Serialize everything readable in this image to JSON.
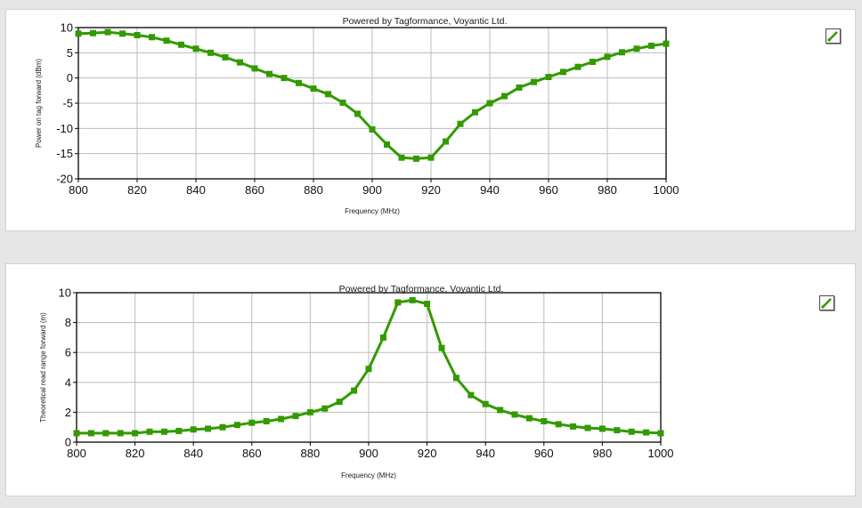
{
  "chart_data": [
    {
      "type": "line",
      "title": "Powered by Tagformance, Voyantic Ltd.",
      "xlabel": "Frequency (MHz)",
      "ylabel": "Power on tag forward (dBm)",
      "xlim": [
        800,
        1000
      ],
      "ylim": [
        -20,
        10
      ],
      "xticks": [
        800,
        820,
        840,
        860,
        880,
        900,
        920,
        940,
        960,
        980,
        1000
      ],
      "yticks": [
        -20,
        -15,
        -10,
        -5,
        0,
        5,
        10
      ],
      "grid": true,
      "series": [
        {
          "color": "#339a00",
          "marker": "square",
          "x": [
            800,
            805,
            810,
            815,
            820,
            825,
            830,
            835,
            840,
            845,
            850,
            855,
            860,
            865,
            870,
            875,
            880,
            885,
            890,
            895,
            900,
            905,
            910,
            915,
            920,
            925,
            930,
            935,
            940,
            945,
            950,
            955,
            960,
            965,
            970,
            975,
            980,
            985,
            990,
            995,
            1000
          ],
          "y": [
            8.8,
            8.9,
            9.1,
            8.8,
            8.5,
            8.1,
            7.4,
            6.6,
            5.8,
            5.0,
            4.1,
            3.1,
            1.9,
            0.8,
            0.0,
            -1.0,
            -2.1,
            -3.2,
            -4.9,
            -7.1,
            -10.2,
            -13.2,
            -15.8,
            -16.0,
            -15.8,
            -12.6,
            -9.1,
            -6.8,
            -5.0,
            -3.6,
            -1.9,
            -0.8,
            0.2,
            1.2,
            2.2,
            3.2,
            4.2,
            5.1,
            5.8,
            6.4,
            6.8
          ]
        }
      ]
    },
    {
      "type": "line",
      "title": "Powered by Tagformance, Voyantic Ltd.",
      "xlabel": "Frequency (MHz)",
      "ylabel": "Theoretical read range forward (m)",
      "xlim": [
        800,
        1000
      ],
      "ylim": [
        0,
        10
      ],
      "xticks": [
        800,
        820,
        840,
        860,
        880,
        900,
        920,
        940,
        960,
        980,
        1000
      ],
      "yticks": [
        0,
        2,
        4,
        6,
        8,
        10
      ],
      "grid": true,
      "series": [
        {
          "color": "#339a00",
          "marker": "square",
          "x": [
            800,
            805,
            810,
            815,
            820,
            825,
            830,
            835,
            840,
            845,
            850,
            855,
            860,
            865,
            870,
            875,
            880,
            885,
            890,
            895,
            900,
            905,
            910,
            915,
            920,
            925,
            930,
            935,
            940,
            945,
            950,
            955,
            960,
            965,
            970,
            975,
            980,
            985,
            990,
            995,
            1000
          ],
          "y": [
            0.6,
            0.6,
            0.6,
            0.6,
            0.6,
            0.7,
            0.7,
            0.75,
            0.85,
            0.9,
            1.0,
            1.15,
            1.3,
            1.4,
            1.55,
            1.75,
            2.0,
            2.25,
            2.7,
            3.45,
            4.9,
            7.0,
            9.35,
            9.5,
            9.25,
            6.3,
            4.3,
            3.15,
            2.55,
            2.15,
            1.85,
            1.6,
            1.4,
            1.2,
            1.05,
            0.95,
            0.9,
            0.8,
            0.7,
            0.65,
            0.6
          ]
        }
      ]
    }
  ]
}
